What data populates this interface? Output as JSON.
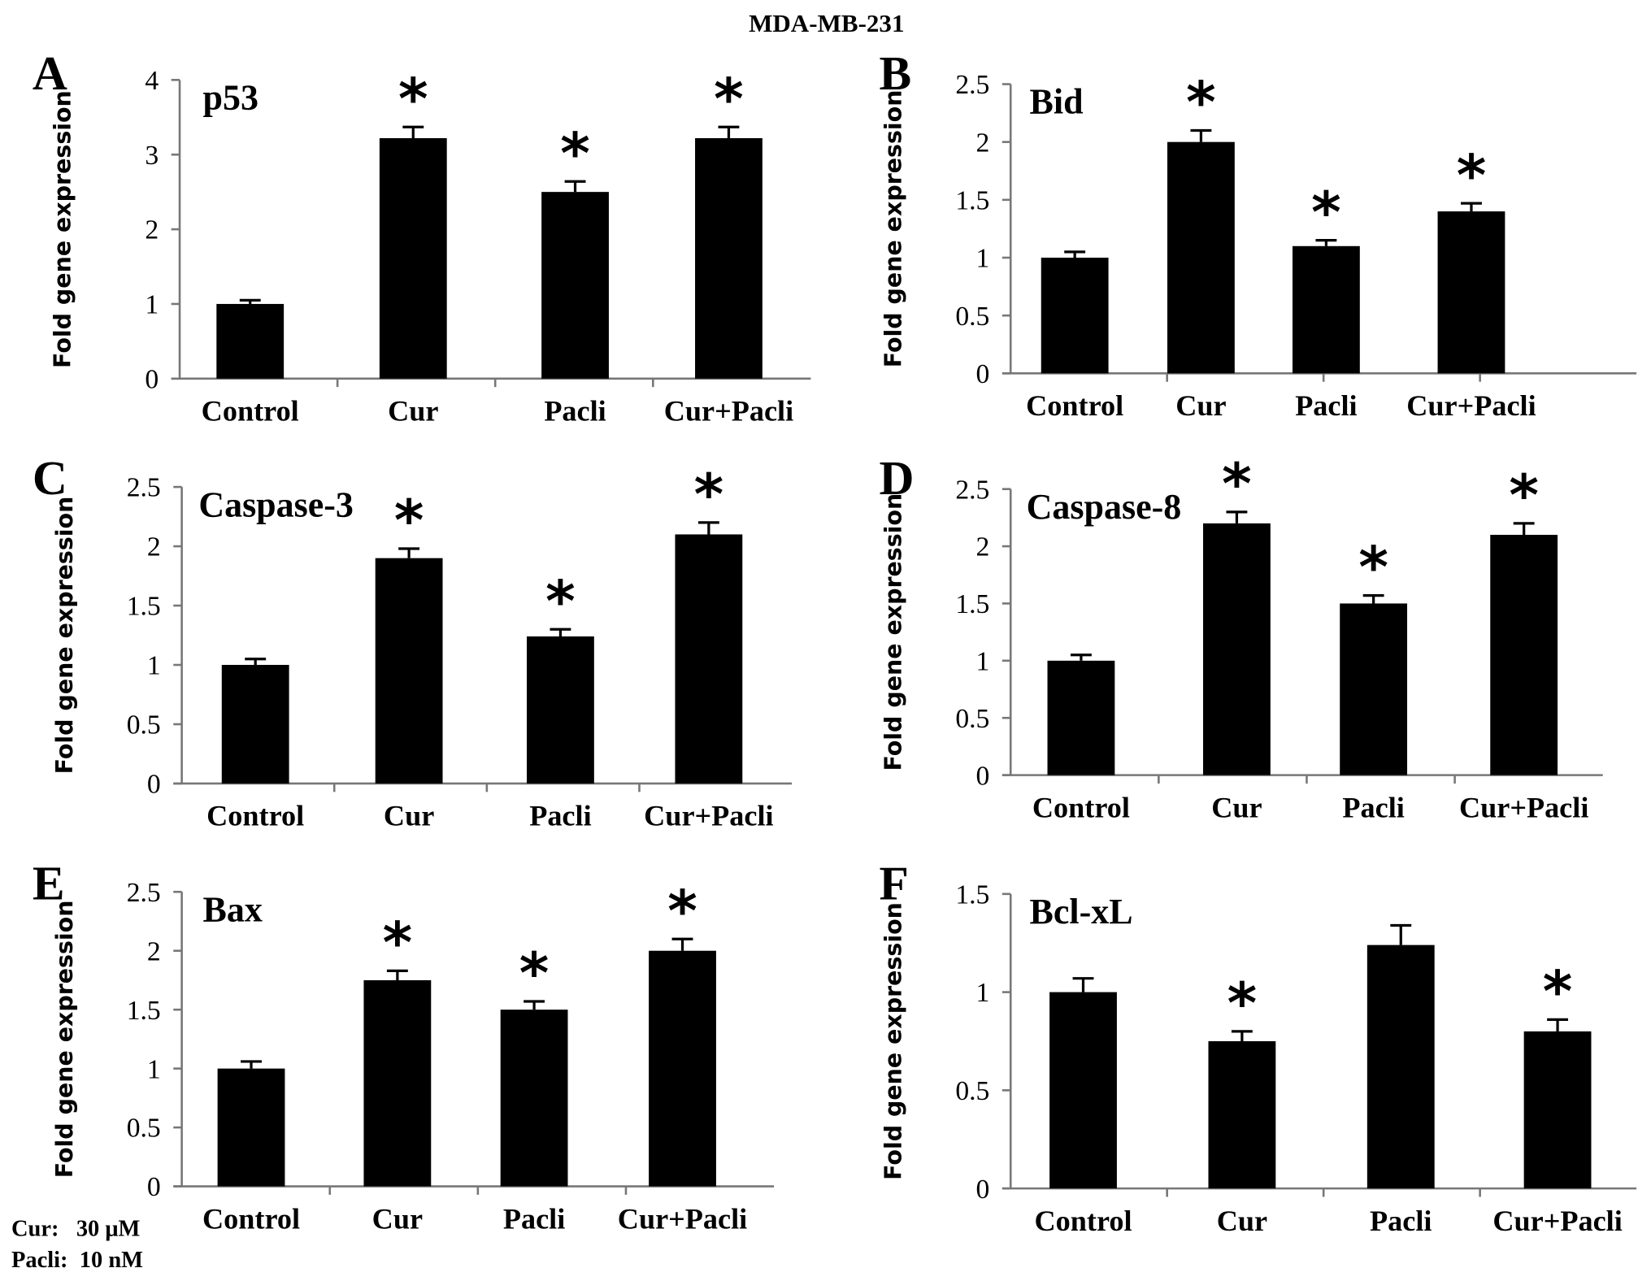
{
  "title": "MDA-MB-231",
  "footnote": {
    "lines": [
      "Cur:   30 μM",
      "Pacli:  10 nM"
    ]
  },
  "chart_data": [
    {
      "panel": "A",
      "type": "bar",
      "title": "p53",
      "ylabel": "Fold gene expression",
      "ylim": [
        0,
        4
      ],
      "yticks": [
        "0",
        "1",
        "2",
        "3",
        "4"
      ],
      "categories": [
        "Control",
        "Cur",
        "Pacli",
        "Cur+Pacli"
      ],
      "values": [
        1.0,
        3.22,
        2.5,
        3.22
      ],
      "errors": [
        0.05,
        0.15,
        0.14,
        0.15
      ],
      "significant": [
        false,
        true,
        true,
        true
      ]
    },
    {
      "panel": "B",
      "type": "bar",
      "title": "Bid",
      "ylabel": "Fold gene expression",
      "ylim": [
        0,
        2.5
      ],
      "yticks": [
        "0",
        "0.5",
        "1",
        "1.5",
        "2",
        "2.5"
      ],
      "categories": [
        "Control",
        "Cur",
        "Pacli",
        "Cur+Pacli"
      ],
      "values": [
        1.0,
        2.0,
        1.1,
        1.4
      ],
      "errors": [
        0.05,
        0.1,
        0.05,
        0.07
      ],
      "significant": [
        false,
        true,
        true,
        true
      ]
    },
    {
      "panel": "C",
      "type": "bar",
      "title": "Caspase-3",
      "ylabel": "Fold gene expression",
      "ylim": [
        0,
        2.5
      ],
      "yticks": [
        "0",
        "0.5",
        "1",
        "1.5",
        "2",
        "2.5"
      ],
      "categories": [
        "Control",
        "Cur",
        "Pacli",
        "Cur+Pacli"
      ],
      "values": [
        1.0,
        1.9,
        1.24,
        2.1
      ],
      "errors": [
        0.05,
        0.08,
        0.06,
        0.1
      ],
      "significant": [
        false,
        true,
        true,
        true
      ]
    },
    {
      "panel": "D",
      "type": "bar",
      "title": "Caspase-8",
      "ylabel": "Fold gene expression",
      "ylim": [
        0,
        2.5
      ],
      "yticks": [
        "0",
        "0.5",
        "1",
        "1.5",
        "2",
        "2.5"
      ],
      "categories": [
        "Control",
        "Cur",
        "Pacli",
        "Cur+Pacli"
      ],
      "values": [
        1.0,
        2.2,
        1.5,
        2.1
      ],
      "errors": [
        0.05,
        0.1,
        0.07,
        0.1
      ],
      "significant": [
        false,
        true,
        true,
        true
      ]
    },
    {
      "panel": "E",
      "type": "bar",
      "title": "Bax",
      "ylabel": "Fold gene expression",
      "ylim": [
        0,
        2.5
      ],
      "yticks": [
        "0",
        "0.5",
        "1",
        "1.5",
        "2",
        "2.5"
      ],
      "categories": [
        "Control",
        "Cur",
        "Pacli",
        "Cur+Pacli"
      ],
      "values": [
        1.0,
        1.75,
        1.5,
        2.0
      ],
      "errors": [
        0.06,
        0.08,
        0.07,
        0.1
      ],
      "significant": [
        false,
        true,
        true,
        true
      ]
    },
    {
      "panel": "F",
      "type": "bar",
      "title": "Bcl-xL",
      "ylabel": "Fold gene expression",
      "ylim": [
        0,
        1.5
      ],
      "yticks": [
        "0",
        "0.5",
        "1",
        "1.5"
      ],
      "categories": [
        "Control",
        "Cur",
        "Pacli",
        "Cur+Pacli"
      ],
      "values": [
        1.0,
        0.75,
        1.24,
        0.8
      ],
      "errors": [
        0.07,
        0.05,
        0.1,
        0.06
      ],
      "significant": [
        false,
        true,
        false,
        true
      ]
    }
  ]
}
